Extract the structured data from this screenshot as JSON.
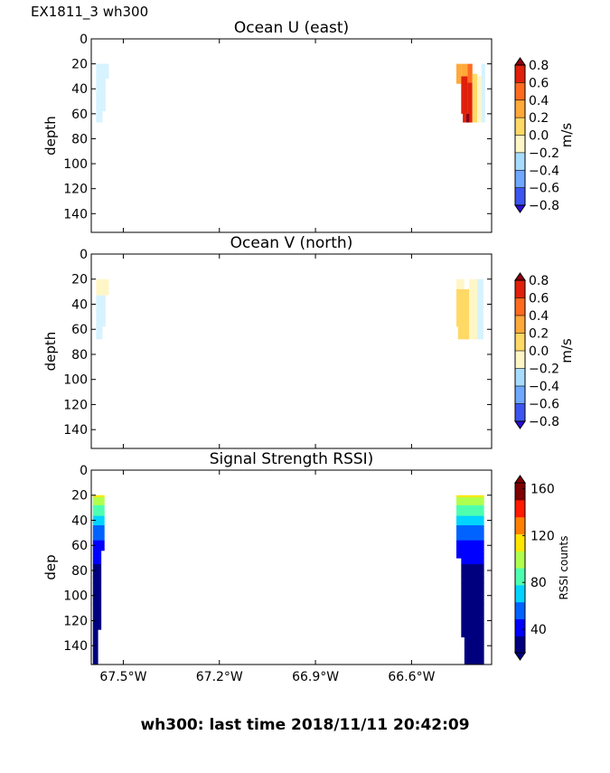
{
  "figure": {
    "corner_label": "EX1811_3 wh300",
    "footer": "wh300: last time 2018/11/11 20:42:09"
  },
  "colors": {
    "diverging": [
      "#2a0bd6",
      "#3d55f0",
      "#6fa8ff",
      "#a8dcff",
      "#d6f3ff",
      "#fff6c7",
      "#ffd966",
      "#ffa93a",
      "#ff6a1f",
      "#e0200a",
      "#8a0010"
    ],
    "rainbow": [
      "#00007f",
      "#0000ff",
      "#0063ff",
      "#00d4ff",
      "#4effb0",
      "#b0ff4e",
      "#ffe600",
      "#ff8000",
      "#ff1a00",
      "#7f0000"
    ]
  },
  "chart_data": [
    {
      "type": "heatmap",
      "title": "Ocean U (east)",
      "ylabel": "depth",
      "xlabel": "",
      "xlim": [
        -67.6,
        -66.35
      ],
      "ylim": [
        155,
        0
      ],
      "y_ticks": [
        0,
        20,
        40,
        60,
        80,
        100,
        120,
        140
      ],
      "x_ticks": [],
      "colorbar": {
        "label": "m/s",
        "ticks": [
          "0.8",
          "0.6",
          "0.4",
          "0.2",
          "0.0",
          "−0.2",
          "−0.4",
          "−0.6",
          "−0.8"
        ],
        "range": [
          -0.8,
          0.8
        ],
        "extend": "both"
      },
      "cells": [
        {
          "x0": -67.585,
          "x1": -67.545,
          "y0": 20,
          "y1": 32,
          "v": -0.1
        },
        {
          "x0": -67.585,
          "x1": -67.555,
          "y0": 32,
          "y1": 58,
          "v": -0.1
        },
        {
          "x0": -67.585,
          "x1": -67.565,
          "y0": 58,
          "y1": 67,
          "v": -0.1
        },
        {
          "x0": -66.46,
          "x1": -66.445,
          "y0": 20,
          "y1": 36,
          "v": 0.45
        },
        {
          "x0": -66.445,
          "x1": -66.425,
          "y0": 20,
          "y1": 30,
          "v": 0.45
        },
        {
          "x0": -66.445,
          "x1": -66.425,
          "y0": 30,
          "y1": 60,
          "v": 0.7
        },
        {
          "x0": -66.425,
          "x1": -66.41,
          "y0": 20,
          "y1": 35,
          "v": 0.55
        },
        {
          "x0": -66.425,
          "x1": -66.41,
          "y0": 35,
          "y1": 67,
          "v": 0.75
        },
        {
          "x0": -66.44,
          "x1": -66.43,
          "y0": 55,
          "y1": 67,
          "v": 0.75
        },
        {
          "x0": -66.43,
          "x1": -66.42,
          "y0": 60,
          "y1": 67,
          "v": 0.85
        },
        {
          "x0": -66.41,
          "x1": -66.395,
          "y0": 28,
          "y1": 67,
          "v": 0.3
        },
        {
          "x0": -66.395,
          "x1": -66.382,
          "y0": 30,
          "y1": 67,
          "v": 0.1
        },
        {
          "x0": -66.382,
          "x1": -66.37,
          "y0": 20,
          "y1": 67,
          "v": -0.1
        }
      ]
    },
    {
      "type": "heatmap",
      "title": "Ocean V (north)",
      "ylabel": "depth",
      "xlabel": "",
      "xlim": [
        -67.6,
        -66.35
      ],
      "ylim": [
        155,
        0
      ],
      "y_ticks": [
        0,
        20,
        40,
        60,
        80,
        100,
        120,
        140
      ],
      "x_ticks": [],
      "colorbar": {
        "label": "m/s",
        "ticks": [
          "0.8",
          "0.6",
          "0.4",
          "0.2",
          "0.0",
          "−0.2",
          "−0.4",
          "−0.6",
          "−0.8"
        ],
        "range": [
          -0.8,
          0.8
        ],
        "extend": "both"
      },
      "cells": [
        {
          "x0": -67.585,
          "x1": -67.545,
          "y0": 20,
          "y1": 33,
          "v": 0.05
        },
        {
          "x0": -67.585,
          "x1": -67.555,
          "y0": 33,
          "y1": 58,
          "v": -0.1
        },
        {
          "x0": -67.585,
          "x1": -67.565,
          "y0": 58,
          "y1": 68,
          "v": -0.1
        },
        {
          "x0": -66.46,
          "x1": -66.435,
          "y0": 20,
          "y1": 28,
          "v": 0.05
        },
        {
          "x0": -66.46,
          "x1": -66.42,
          "y0": 28,
          "y1": 58,
          "v": 0.3
        },
        {
          "x0": -66.455,
          "x1": -66.42,
          "y0": 58,
          "y1": 68,
          "v": 0.3
        },
        {
          "x0": -66.42,
          "x1": -66.395,
          "y0": 20,
          "y1": 68,
          "v": 0.1
        },
        {
          "x0": -66.395,
          "x1": -66.375,
          "y0": 20,
          "y1": 68,
          "v": -0.1
        }
      ]
    },
    {
      "type": "heatmap",
      "title": "Signal Strength RSSI)",
      "ylabel": "dep",
      "xlabel": "",
      "xlim": [
        -67.6,
        -66.35
      ],
      "ylim": [
        155,
        0
      ],
      "y_ticks": [
        0,
        20,
        40,
        60,
        80,
        100,
        120,
        140
      ],
      "x_ticks": [
        {
          "value": -67.5,
          "label": "67.5°W"
        },
        {
          "value": -67.2,
          "label": "67.2°W"
        },
        {
          "value": -66.9,
          "label": "66.9°W"
        },
        {
          "value": -66.6,
          "label": "66.6°W"
        }
      ],
      "colorbar": {
        "label": "RSSI counts",
        "ticks": [
          "160",
          "120",
          "80",
          "40"
        ],
        "tick_values": [
          160,
          120,
          80,
          40
        ],
        "range": [
          20,
          165
        ],
        "extend": "both"
      },
      "profiles": [
        {
          "x0": -67.595,
          "x1": -67.58,
          "max_depth": 155
        },
        {
          "x0": -67.58,
          "x1": -67.57,
          "max_depth": 127
        },
        {
          "x0": -67.57,
          "x1": -67.56,
          "max_depth": 64
        },
        {
          "x0": -66.46,
          "x1": -66.445,
          "max_depth": 70
        },
        {
          "x0": -66.445,
          "x1": -66.435,
          "max_depth": 133
        },
        {
          "x0": -66.435,
          "x1": -66.41,
          "max_depth": 155
        },
        {
          "x0": -66.41,
          "x1": -66.375,
          "max_depth": 155
        }
      ],
      "depth_value_profile": [
        {
          "depth": 20,
          "v": 112
        },
        {
          "depth": 26,
          "v": 96
        },
        {
          "depth": 34,
          "v": 80
        },
        {
          "depth": 44,
          "v": 65
        },
        {
          "depth": 56,
          "v": 48
        },
        {
          "depth": 70,
          "v": 36
        },
        {
          "depth": 90,
          "v": 30
        },
        {
          "depth": 155,
          "v": 26
        }
      ]
    }
  ]
}
